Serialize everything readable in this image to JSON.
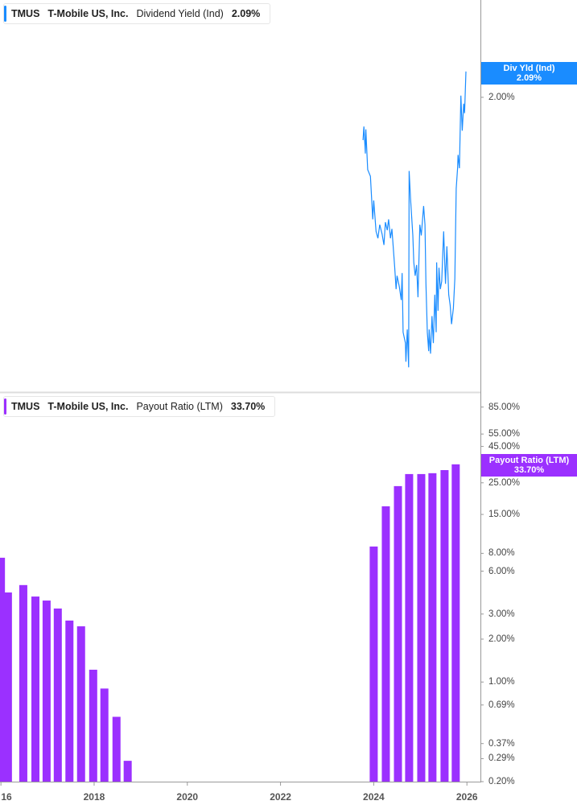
{
  "colors": {
    "yield": "#1a8cff",
    "payout": "#9b30ff",
    "axis": "#999999"
  },
  "top_legend": {
    "ticker": "TMUS",
    "company": "T-Mobile US, Inc.",
    "metric": "Dividend Yield (Ind)",
    "value": "2.09%"
  },
  "bottom_legend": {
    "ticker": "TMUS",
    "company": "T-Mobile US, Inc.",
    "metric": "Payout Ratio (LTM)",
    "value": "33.70%"
  },
  "top_flag": {
    "label": "Div Yld (Ind)",
    "value": "2.09%"
  },
  "bottom_flag": {
    "label": "Payout Ratio (LTM)",
    "value": "33.70%"
  },
  "x_ticks": [
    "16",
    "2018",
    "2020",
    "2022",
    "2024",
    "2026"
  ],
  "chart_data": [
    {
      "type": "line",
      "series_name": "Dividend Yield (Ind)",
      "xlim": [
        2015.98,
        2026.29
      ],
      "ylim": [
        0.94,
        2.35
      ],
      "y_scale": "linear",
      "y_ticks": [
        "2.00%"
      ],
      "x": [
        2023.77,
        2023.79,
        2023.82,
        2023.83,
        2023.87,
        2023.93,
        2023.98,
        2024.0,
        2024.05,
        2024.09,
        2024.13,
        2024.18,
        2024.22,
        2024.25,
        2024.29,
        2024.32,
        2024.36,
        2024.39,
        2024.45,
        2024.48,
        2024.5,
        2024.55,
        2024.59,
        2024.61,
        2024.63,
        2024.68,
        2024.69,
        2024.72,
        2024.75,
        2024.76,
        2024.79,
        2024.84,
        2024.86,
        2024.89,
        2024.92,
        2024.95,
        2024.99,
        2025.02,
        2025.07,
        2025.1,
        2025.12,
        2025.15,
        2025.18,
        2025.19,
        2025.22,
        2025.25,
        2025.28,
        2025.31,
        2025.34,
        2025.35,
        2025.38,
        2025.4,
        2025.43,
        2025.46,
        2025.5,
        2025.54,
        2025.57,
        2025.61,
        2025.64,
        2025.67,
        2025.71,
        2025.74,
        2025.77,
        2025.8,
        2025.81,
        2025.84,
        2025.87,
        2025.9,
        2025.93,
        2025.95,
        2025.98
      ],
      "y": [
        1.846,
        1.895,
        1.798,
        1.885,
        1.74,
        1.716,
        1.561,
        1.629,
        1.518,
        1.493,
        1.542,
        1.508,
        1.469,
        1.551,
        1.522,
        1.561,
        1.493,
        1.527,
        1.387,
        1.31,
        1.358,
        1.319,
        1.271,
        1.368,
        1.155,
        1.116,
        1.049,
        1.165,
        1.029,
        1.735,
        1.638,
        1.503,
        1.406,
        1.358,
        1.397,
        1.281,
        1.542,
        1.503,
        1.609,
        1.542,
        1.329,
        1.155,
        1.087,
        1.165,
        1.078,
        1.213,
        1.116,
        1.29,
        1.155,
        1.406,
        1.232,
        1.387,
        1.31,
        1.339,
        1.518,
        1.329,
        1.464,
        1.29,
        1.252,
        1.184,
        1.242,
        1.348,
        1.672,
        1.745,
        1.793,
        1.745,
        2.006,
        1.88,
        1.977,
        1.943,
        2.093
      ]
    },
    {
      "type": "bar",
      "series_name": "Payout Ratio (LTM)",
      "xlim": [
        2015.98,
        2026.29
      ],
      "ylim": [
        0.2,
        107
      ],
      "y_scale": "log",
      "y_ticks": [
        "85.00%",
        "55.00%",
        "45.00%",
        "25.00%",
        "15.00%",
        "8.00%",
        "6.00%",
        "3.00%",
        "2.00%",
        "1.00%",
        "0.69%",
        "0.37%",
        "0.29%",
        "0.20%"
      ],
      "y_tick_values": [
        85,
        55,
        45,
        25,
        15,
        8,
        6,
        3,
        2,
        1,
        0.69,
        0.37,
        0.29,
        0.2
      ],
      "x": [
        2016.0,
        2016.15,
        2016.48,
        2016.74,
        2016.98,
        2017.22,
        2017.47,
        2017.72,
        2017.98,
        2018.22,
        2018.48,
        2018.72,
        2024.0,
        2024.26,
        2024.52,
        2024.76,
        2025.02,
        2025.26,
        2025.52,
        2025.76
      ],
      "values": [
        7.45,
        4.25,
        4.79,
        3.98,
        3.73,
        3.28,
        2.7,
        2.46,
        1.22,
        0.9,
        0.57,
        0.28,
        8.93,
        17.1,
        23.7,
        28.8,
        28.8,
        29.2,
        30.7,
        33.7
      ]
    }
  ]
}
